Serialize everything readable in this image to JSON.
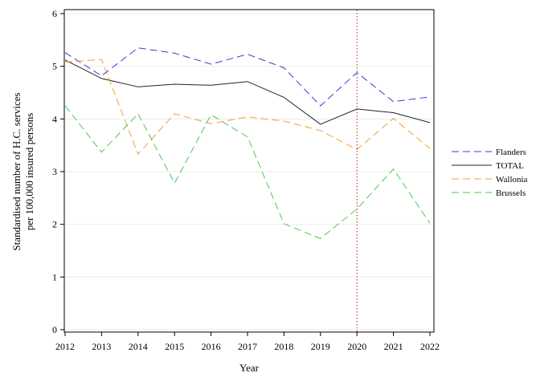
{
  "chart_data": {
    "type": "line",
    "title": "",
    "xlabel": "Year",
    "ylabel_line1": "Standardised number of H.C. services",
    "ylabel_line2": "per 100,000 insured persons",
    "x": [
      2012,
      2013,
      2014,
      2015,
      2016,
      2017,
      2018,
      2019,
      2020,
      2021,
      2022
    ],
    "xlim": [
      2012,
      2022
    ],
    "ylim": [
      0,
      6
    ],
    "y_ticks": [
      0,
      1,
      2,
      3,
      4,
      5,
      6
    ],
    "grid": "horizontal",
    "reference_line": {
      "x": 2020,
      "color": "#b22222",
      "style": "dotted"
    },
    "legend_position": "right",
    "series": [
      {
        "name": "Flanders",
        "color": "#3a3ae0",
        "dash": "dashed",
        "values": [
          5.26,
          4.82,
          5.35,
          5.25,
          5.04,
          5.23,
          4.97,
          4.25,
          4.88,
          4.33,
          4.42
        ]
      },
      {
        "name": "TOTAL",
        "color": "#222222",
        "dash": "solid",
        "values": [
          5.12,
          4.77,
          4.61,
          4.66,
          4.64,
          4.71,
          4.41,
          3.9,
          4.19,
          4.12,
          3.93
        ]
      },
      {
        "name": "Wallonia",
        "color": "#f0a030",
        "dash": "dashed",
        "values": [
          5.08,
          5.13,
          3.33,
          4.1,
          3.91,
          4.04,
          3.96,
          3.78,
          3.42,
          4.01,
          3.44
        ]
      },
      {
        "name": "Brussels",
        "color": "#4cc94c",
        "dash": "dashed",
        "values": [
          4.25,
          3.37,
          4.1,
          2.78,
          4.08,
          3.66,
          2.01,
          1.73,
          2.29,
          3.05,
          2.02
        ]
      }
    ]
  }
}
